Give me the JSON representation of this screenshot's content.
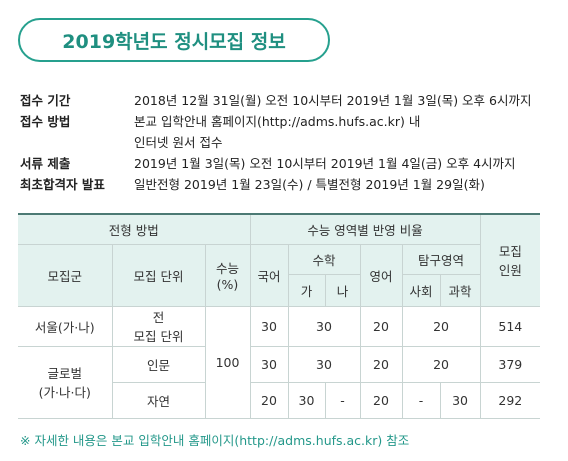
{
  "header": {
    "title": "2019학년도 정시모집 정보"
  },
  "info": [
    {
      "label": "접수 기간",
      "lines": [
        "2018년 12월 31일(월) 오전 10시부터 2019년 1월 3일(목) 오후 6시까지"
      ]
    },
    {
      "label": "접수 방법",
      "lines": [
        "본교 입학안내 홈페이지(http://adms.hufs.ac.kr) 내",
        "인터넷 원서 접수"
      ]
    },
    {
      "label": "서류 제출",
      "lines": [
        "2019년 1월 3일(목) 오전 10시부터 2019년 1월 4일(금) 오후 4시까지"
      ]
    },
    {
      "label": "최초합격자 발표",
      "lines": [
        "일반전형 2019년 1월 23일(수) / 특별전형 2019년 1월 29일(화)"
      ]
    }
  ],
  "table": {
    "headers": {
      "method": "전형 방법",
      "ratio": "수능 영역별 반영 비율",
      "group": "모집군",
      "unit": "모집 단위",
      "suneung": [
        "수능",
        "(%)"
      ],
      "korean": "국어",
      "math": "수학",
      "english": "영어",
      "inquiry": "탐구영역",
      "quota": [
        "모집",
        "인원"
      ],
      "math_ga": "가",
      "math_na": "나",
      "social": "사회",
      "science": "과학"
    },
    "suneung_value": 100,
    "rows": [
      {
        "group": [
          "서울(가·나)"
        ],
        "unit": [
          "전",
          "모집 단위"
        ],
        "korean": 30,
        "math": [
          30
        ],
        "english": 20,
        "inquiry": [
          20
        ],
        "quota": 514
      },
      {
        "group": [
          "글로벌",
          "(가·나·다)"
        ],
        "unit": [
          "인문"
        ],
        "korean": 30,
        "math": [
          30
        ],
        "english": 20,
        "inquiry": [
          20
        ],
        "quota": 379
      },
      {
        "unit": [
          "자연"
        ],
        "korean": 20,
        "math": [
          30,
          "-"
        ],
        "english": 20,
        "inquiry": [
          "-",
          30
        ],
        "quota": 292
      }
    ]
  },
  "note": "※ 자세한 내용은 본교 입학안내 홈페이지(http://adms.hufs.ac.kr) 참조"
}
